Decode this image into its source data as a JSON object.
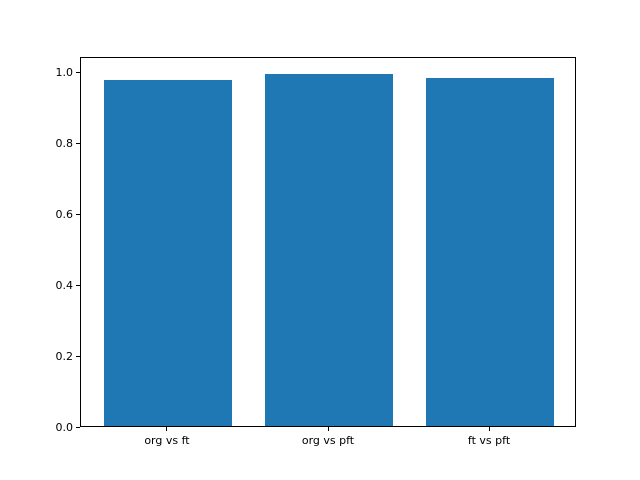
{
  "figure": {
    "background": "#ffffff",
    "axes_background": "#ffffff",
    "spine_color": "#000000",
    "tick_color": "#000000"
  },
  "chart_data": {
    "type": "bar",
    "title": "",
    "xlabel": "",
    "ylabel": "",
    "categories": [
      "org vs ft",
      "org vs pft",
      "ft vs pft"
    ],
    "values": [
      0.976,
      0.995,
      0.983
    ],
    "bar_color": "#1f77b4",
    "bar_width": 0.8,
    "xlim": [
      -0.54,
      2.54
    ],
    "ylim": [
      0,
      1.045
    ],
    "yticks": [
      0.0,
      0.2,
      0.4,
      0.6,
      0.8,
      1.0
    ],
    "ytick_labels": [
      "0.0",
      "0.2",
      "0.4",
      "0.6",
      "0.8",
      "1.0"
    ],
    "grid": false,
    "legend": null
  }
}
